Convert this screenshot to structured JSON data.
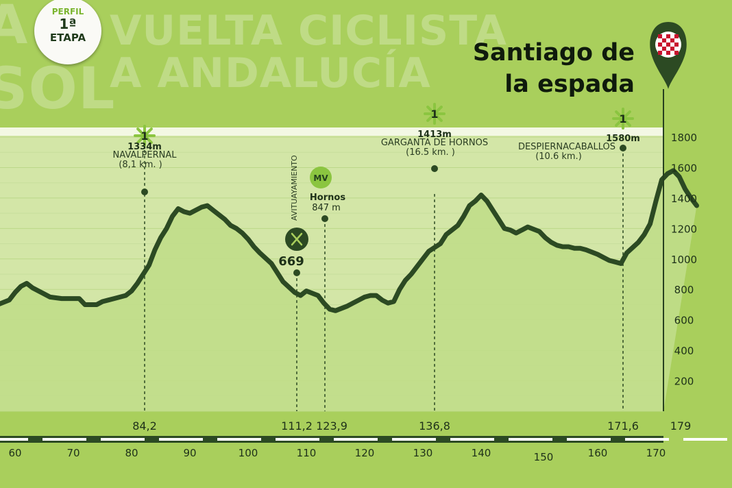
{
  "badge": {
    "line1": "PERFIL",
    "line2": "1ª",
    "line3": "ETAPA"
  },
  "watermark": {
    "line1": "VUELTA CICLISTA",
    "line2": "A ANDALUCÍA",
    "side1": "A",
    "side2": "SOL"
  },
  "destination": {
    "line1": "Santiago de",
    "line2": "la espada"
  },
  "colors": {
    "background": "#a9cf5c",
    "profile_line": "#2c4a23",
    "band": "#ecf3d8",
    "marker_green": "#8bc540"
  },
  "chart_data": {
    "type": "area",
    "title": "",
    "xlabel": "",
    "ylabel": "",
    "ylim": [
      0,
      1900
    ],
    "xlim": [
      54,
      178
    ],
    "y_ticks": [
      200,
      400,
      600,
      800,
      1000,
      1200,
      1400,
      1600,
      1800
    ],
    "x_ticks": [
      60,
      70,
      80,
      90,
      100,
      110,
      120,
      130,
      140,
      150,
      160,
      170
    ],
    "series": [
      {
        "x": [
          54,
          56,
          57,
          59,
          60,
          61,
          62,
          63,
          65,
          66,
          68,
          70,
          71,
          72,
          74,
          75,
          76,
          77,
          79,
          80,
          81,
          82,
          83,
          84,
          85,
          86,
          87,
          88,
          89,
          90,
          92,
          93,
          94,
          95,
          96,
          97,
          98,
          99,
          100,
          101,
          102,
          104,
          105,
          106,
          108,
          109,
          110,
          112,
          113,
          114,
          115,
          117,
          118,
          119,
          120,
          121,
          122,
          123,
          124,
          125,
          126,
          127,
          128,
          129,
          130,
          131,
          133,
          134,
          136,
          137,
          138,
          139,
          140,
          141,
          142,
          143,
          144,
          145,
          146,
          147,
          148,
          150,
          151,
          152,
          153,
          154,
          155,
          156,
          157,
          158,
          160,
          161,
          162,
          163,
          164,
          165,
          167,
          168,
          169,
          170,
          171,
          172,
          173,
          174,
          175,
          176,
          177
        ],
        "y": [
          640,
          670,
          700,
          730,
          780,
          820,
          840,
          810,
          770,
          750,
          740,
          740,
          740,
          700,
          700,
          720,
          730,
          740,
          760,
          790,
          840,
          900,
          960,
          1060,
          1140,
          1200,
          1280,
          1330,
          1310,
          1300,
          1340,
          1350,
          1320,
          1290,
          1260,
          1220,
          1200,
          1170,
          1130,
          1080,
          1040,
          970,
          910,
          850,
          780,
          760,
          790,
          760,
          710,
          670,
          660,
          690,
          710,
          730,
          750,
          760,
          760,
          730,
          710,
          720,
          800,
          860,
          900,
          950,
          1000,
          1050,
          1100,
          1160,
          1220,
          1280,
          1350,
          1380,
          1420,
          1380,
          1320,
          1260,
          1200,
          1190,
          1170,
          1190,
          1210,
          1180,
          1140,
          1110,
          1090,
          1080,
          1080,
          1070,
          1070,
          1060,
          1030,
          1010,
          990,
          980,
          970,
          1040,
          1110,
          1160,
          1230,
          1380,
          1520,
          1560,
          1580,
          1540,
          1460,
          1400,
          1350
        ]
      }
    ],
    "climbs": [
      {
        "km": "84,2",
        "alt": "1334m",
        "name": "NAVALPERNAL",
        "dist": "(8,1 km. )",
        "cat": "1"
      },
      {
        "km": "136,8",
        "alt": "1413m",
        "name": "GARGANTA DE HORNOS",
        "dist": "(16.5 km. )",
        "cat": "1"
      },
      {
        "km": "171,6",
        "alt": "1580m",
        "name": "DESPIERNACABALLOS",
        "dist": "(10.6 km.)",
        "cat": "1"
      }
    ],
    "feed": {
      "km": "111,2",
      "label": "AVITUAYAMIENTO",
      "alt": "669"
    },
    "sprint": {
      "km": "123,9",
      "badge": "MV",
      "name": "Hornos",
      "alt": "847 m"
    },
    "finish_km": "179"
  }
}
